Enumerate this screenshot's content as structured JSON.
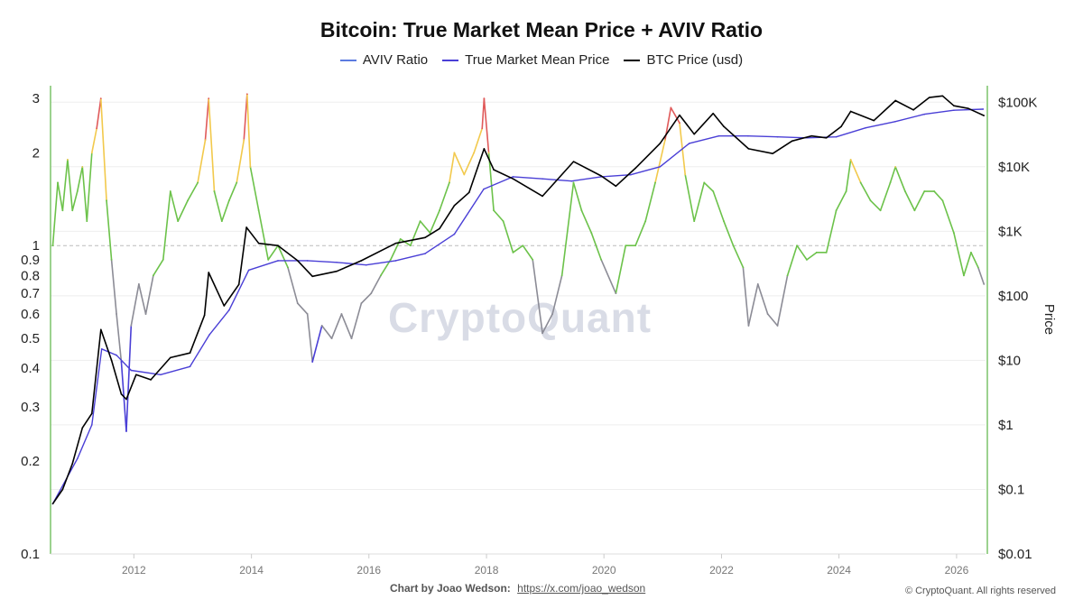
{
  "chart_data": {
    "type": "line",
    "title": "Bitcoin: True Market Mean Price + AVIV Ratio",
    "legend": {
      "placement": "top-center",
      "entries": [
        {
          "name": "AVIV Ratio",
          "color": "#5b7be0"
        },
        {
          "name": "True Market Mean Price",
          "color": "#4a3fd6"
        },
        {
          "name": "BTC Price (usd)",
          "color": "#000000"
        }
      ]
    },
    "x_axis": {
      "type": "date",
      "range": [
        "2010-08-01",
        "2026-06-30"
      ],
      "ticks": [
        "2012",
        "2014",
        "2016",
        "2018",
        "2020",
        "2022",
        "2024",
        "2026"
      ]
    },
    "y_left": {
      "scale": "log",
      "range": [
        0.1,
        3.3
      ],
      "ticks": [
        "0.1",
        "0.2",
        "0.3",
        "0.4",
        "0.5",
        "0.6",
        "0.7",
        "0.8",
        "0.9",
        "1",
        "2",
        "3"
      ],
      "reference_line": 1
    },
    "y_right": {
      "scale": "log",
      "label": "Price",
      "range": [
        0.01,
        180000
      ],
      "ticks": [
        "$0.01",
        "$0.1",
        "$1",
        "$10",
        "$100",
        "$1K",
        "$10K",
        "$100K"
      ]
    },
    "aviv_color_bands": [
      {
        "min": 0,
        "max": 0.5,
        "color": "#4a3fd6"
      },
      {
        "min": 0.5,
        "max": 0.8,
        "color": "#8c8c96"
      },
      {
        "min": 0.8,
        "max": 1.7,
        "color": "#6cc24a"
      },
      {
        "min": 1.7,
        "max": 2.4,
        "color": "#f2c94c"
      },
      {
        "min": 2.4,
        "max": 10,
        "color": "#e05a5a"
      }
    ],
    "series": [
      {
        "name": "AVIV Ratio",
        "axis": "left",
        "points": [
          [
            "2010-08-15",
            1.0
          ],
          [
            "2010-09-15",
            1.6
          ],
          [
            "2010-10-15",
            1.3
          ],
          [
            "2010-11-15",
            1.9
          ],
          [
            "2010-12-15",
            1.3
          ],
          [
            "2011-01-15",
            1.5
          ],
          [
            "2011-02-15",
            1.8
          ],
          [
            "2011-03-15",
            1.2
          ],
          [
            "2011-04-15",
            2.0
          ],
          [
            "2011-05-15",
            2.4
          ],
          [
            "2011-06-10",
            3.0
          ],
          [
            "2011-07-15",
            1.4
          ],
          [
            "2011-08-15",
            0.9
          ],
          [
            "2011-09-15",
            0.6
          ],
          [
            "2011-10-15",
            0.42
          ],
          [
            "2011-11-15",
            0.25
          ],
          [
            "2011-12-15",
            0.55
          ],
          [
            "2012-02-01",
            0.75
          ],
          [
            "2012-03-15",
            0.6
          ],
          [
            "2012-05-01",
            0.8
          ],
          [
            "2012-07-01",
            0.9
          ],
          [
            "2012-08-15",
            1.5
          ],
          [
            "2012-10-01",
            1.2
          ],
          [
            "2012-12-01",
            1.4
          ],
          [
            "2013-02-01",
            1.6
          ],
          [
            "2013-03-20",
            2.2
          ],
          [
            "2013-04-10",
            3.0
          ],
          [
            "2013-05-15",
            1.5
          ],
          [
            "2013-07-01",
            1.2
          ],
          [
            "2013-08-15",
            1.4
          ],
          [
            "2013-10-01",
            1.6
          ],
          [
            "2013-11-15",
            2.2
          ],
          [
            "2013-12-05",
            3.1
          ],
          [
            "2013-12-25",
            1.8
          ],
          [
            "2014-02-15",
            1.3
          ],
          [
            "2014-04-15",
            0.9
          ],
          [
            "2014-06-15",
            1.0
          ],
          [
            "2014-08-15",
            0.85
          ],
          [
            "2014-10-15",
            0.65
          ],
          [
            "2014-12-15",
            0.6
          ],
          [
            "2015-01-15",
            0.42
          ],
          [
            "2015-03-15",
            0.55
          ],
          [
            "2015-05-15",
            0.5
          ],
          [
            "2015-07-15",
            0.6
          ],
          [
            "2015-09-15",
            0.5
          ],
          [
            "2015-11-15",
            0.65
          ],
          [
            "2016-01-15",
            0.7
          ],
          [
            "2016-03-15",
            0.8
          ],
          [
            "2016-05-15",
            0.9
          ],
          [
            "2016-07-15",
            1.05
          ],
          [
            "2016-09-15",
            1.0
          ],
          [
            "2016-11-15",
            1.2
          ],
          [
            "2017-01-15",
            1.1
          ],
          [
            "2017-03-15",
            1.3
          ],
          [
            "2017-05-15",
            1.6
          ],
          [
            "2017-06-15",
            2.0
          ],
          [
            "2017-08-15",
            1.7
          ],
          [
            "2017-10-15",
            2.0
          ],
          [
            "2017-12-05",
            2.4
          ],
          [
            "2017-12-17",
            3.0
          ],
          [
            "2018-01-15",
            2.0
          ],
          [
            "2018-02-15",
            1.3
          ],
          [
            "2018-04-15",
            1.2
          ],
          [
            "2018-06-15",
            0.95
          ],
          [
            "2018-08-15",
            1.0
          ],
          [
            "2018-10-15",
            0.9
          ],
          [
            "2018-12-15",
            0.52
          ],
          [
            "2019-02-15",
            0.6
          ],
          [
            "2019-04-15",
            0.8
          ],
          [
            "2019-06-26",
            1.6
          ],
          [
            "2019-08-15",
            1.3
          ],
          [
            "2019-10-15",
            1.1
          ],
          [
            "2019-12-15",
            0.9
          ],
          [
            "2020-03-15",
            0.7
          ],
          [
            "2020-05-15",
            1.0
          ],
          [
            "2020-07-15",
            1.0
          ],
          [
            "2020-09-15",
            1.2
          ],
          [
            "2020-11-15",
            1.6
          ],
          [
            "2021-01-15",
            2.2
          ],
          [
            "2021-02-20",
            2.8
          ],
          [
            "2021-04-15",
            2.5
          ],
          [
            "2021-05-20",
            1.7
          ],
          [
            "2021-07-15",
            1.2
          ],
          [
            "2021-09-15",
            1.6
          ],
          [
            "2021-11-10",
            1.5
          ],
          [
            "2022-01-15",
            1.2
          ],
          [
            "2022-03-15",
            1.0
          ],
          [
            "2022-05-15",
            0.85
          ],
          [
            "2022-06-18",
            0.55
          ],
          [
            "2022-08-15",
            0.75
          ],
          [
            "2022-10-15",
            0.6
          ],
          [
            "2022-12-15",
            0.55
          ],
          [
            "2023-02-15",
            0.8
          ],
          [
            "2023-04-15",
            1.0
          ],
          [
            "2023-06-15",
            0.9
          ],
          [
            "2023-08-15",
            0.95
          ],
          [
            "2023-10-15",
            0.95
          ],
          [
            "2023-12-15",
            1.3
          ],
          [
            "2024-02-15",
            1.5
          ],
          [
            "2024-03-14",
            1.9
          ],
          [
            "2024-05-15",
            1.6
          ],
          [
            "2024-07-15",
            1.4
          ],
          [
            "2024-09-15",
            1.3
          ],
          [
            "2024-11-15",
            1.6
          ],
          [
            "2024-12-17",
            1.8
          ],
          [
            "2025-02-15",
            1.5
          ],
          [
            "2025-04-15",
            1.3
          ],
          [
            "2025-06-15",
            1.5
          ],
          [
            "2025-08-15",
            1.5
          ],
          [
            "2025-10-06",
            1.4
          ],
          [
            "2025-12-15",
            1.1
          ],
          [
            "2026-02-15",
            0.8
          ],
          [
            "2026-04-01",
            0.95
          ],
          [
            "2026-05-15",
            0.85
          ],
          [
            "2026-06-20",
            0.75
          ]
        ]
      },
      {
        "name": "True Market Mean Price",
        "axis": "right",
        "color": "#4a3fd6",
        "points": [
          [
            "2010-08-15",
            0.06
          ],
          [
            "2011-01-15",
            0.3
          ],
          [
            "2011-04-15",
            1.0
          ],
          [
            "2011-06-15",
            15
          ],
          [
            "2011-09-15",
            12
          ],
          [
            "2011-12-15",
            7
          ],
          [
            "2012-06-15",
            6
          ],
          [
            "2012-12-15",
            8
          ],
          [
            "2013-04-15",
            25
          ],
          [
            "2013-08-15",
            60
          ],
          [
            "2013-12-15",
            250
          ],
          [
            "2014-06-15",
            350
          ],
          [
            "2014-12-15",
            350
          ],
          [
            "2015-06-15",
            330
          ],
          [
            "2015-12-15",
            300
          ],
          [
            "2016-06-15",
            350
          ],
          [
            "2016-12-15",
            450
          ],
          [
            "2017-06-15",
            900
          ],
          [
            "2017-12-15",
            4500
          ],
          [
            "2018-06-15",
            7000
          ],
          [
            "2018-12-15",
            6500
          ],
          [
            "2019-06-15",
            6000
          ],
          [
            "2019-12-15",
            7000
          ],
          [
            "2020-06-15",
            7500
          ],
          [
            "2020-12-15",
            10000
          ],
          [
            "2021-06-15",
            23000
          ],
          [
            "2021-12-15",
            30000
          ],
          [
            "2022-06-15",
            30000
          ],
          [
            "2022-12-15",
            29000
          ],
          [
            "2023-06-15",
            28000
          ],
          [
            "2023-12-15",
            29000
          ],
          [
            "2024-06-15",
            40000
          ],
          [
            "2024-12-15",
            50000
          ],
          [
            "2025-06-15",
            65000
          ],
          [
            "2025-12-15",
            75000
          ],
          [
            "2026-06-15",
            78000
          ]
        ]
      },
      {
        "name": "BTC Price (usd)",
        "axis": "right",
        "color": "#000000",
        "points": [
          [
            "2010-08-15",
            0.06
          ],
          [
            "2010-10-15",
            0.1
          ],
          [
            "2010-12-15",
            0.25
          ],
          [
            "2011-02-15",
            0.9
          ],
          [
            "2011-04-15",
            1.5
          ],
          [
            "2011-06-10",
            30
          ],
          [
            "2011-08-15",
            10
          ],
          [
            "2011-10-15",
            3
          ],
          [
            "2011-11-15",
            2.5
          ],
          [
            "2012-01-15",
            6
          ],
          [
            "2012-04-15",
            5
          ],
          [
            "2012-08-15",
            11
          ],
          [
            "2012-12-15",
            13
          ],
          [
            "2013-03-15",
            50
          ],
          [
            "2013-04-10",
            230
          ],
          [
            "2013-07-15",
            70
          ],
          [
            "2013-10-15",
            150
          ],
          [
            "2013-12-01",
            1150
          ],
          [
            "2014-02-15",
            650
          ],
          [
            "2014-06-15",
            600
          ],
          [
            "2014-10-15",
            350
          ],
          [
            "2015-01-15",
            200
          ],
          [
            "2015-06-15",
            240
          ],
          [
            "2015-11-15",
            350
          ],
          [
            "2016-06-15",
            650
          ],
          [
            "2016-12-15",
            800
          ],
          [
            "2017-03-15",
            1100
          ],
          [
            "2017-06-15",
            2500
          ],
          [
            "2017-09-15",
            4000
          ],
          [
            "2017-12-17",
            19000
          ],
          [
            "2018-02-15",
            9000
          ],
          [
            "2018-06-15",
            6500
          ],
          [
            "2018-12-15",
            3500
          ],
          [
            "2019-06-26",
            12000
          ],
          [
            "2019-12-15",
            7200
          ],
          [
            "2020-03-15",
            5000
          ],
          [
            "2020-07-15",
            9500
          ],
          [
            "2020-12-15",
            23000
          ],
          [
            "2021-04-15",
            63000
          ],
          [
            "2021-07-15",
            32000
          ],
          [
            "2021-11-10",
            67000
          ],
          [
            "2022-01-15",
            42000
          ],
          [
            "2022-06-18",
            19000
          ],
          [
            "2022-11-15",
            16000
          ],
          [
            "2023-03-15",
            25000
          ],
          [
            "2023-07-15",
            30000
          ],
          [
            "2023-10-15",
            28000
          ],
          [
            "2024-01-15",
            42000
          ],
          [
            "2024-03-14",
            72000
          ],
          [
            "2024-08-05",
            52000
          ],
          [
            "2024-12-17",
            106000
          ],
          [
            "2025-04-08",
            76000
          ],
          [
            "2025-07-15",
            118000
          ],
          [
            "2025-10-06",
            125000
          ],
          [
            "2025-12-15",
            88000
          ],
          [
            "2026-03-15",
            80000
          ],
          [
            "2026-06-20",
            62000
          ]
        ]
      }
    ]
  },
  "credit": {
    "label": "Chart by Joao Wedson:",
    "link": "https://x.com/joao_wedson"
  },
  "copyright": "© CryptoQuant. All rights reserved",
  "watermark": "CryptoQuant"
}
